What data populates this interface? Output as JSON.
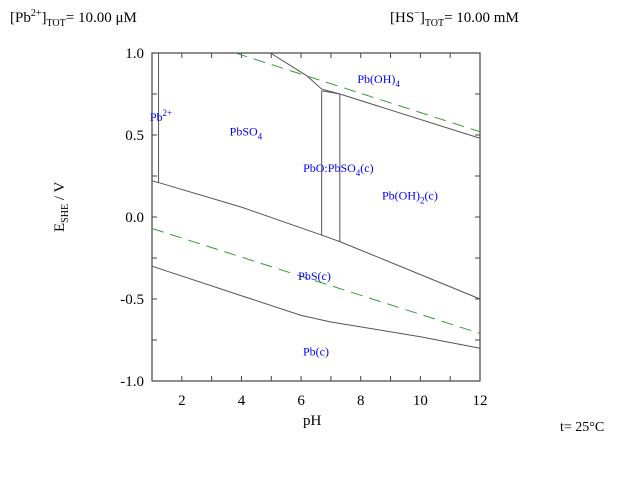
{
  "header": {
    "pb_label": "[Pb",
    "pb_charge": "2+",
    "pb_sub": "TOT",
    "pb_value": "=   10.00 μM",
    "hs_label": "[HS",
    "hs_charge": "−",
    "hs_sub": "TOT",
    "hs_value": "=   10.00 mM"
  },
  "temperature": "t= 25°C",
  "chart_data": {
    "type": "line",
    "title": "",
    "xlabel": "pH",
    "ylabel_main": "E",
    "ylabel_sub": "SHE",
    "ylabel_rest": " / V",
    "xlim": [
      1,
      12
    ],
    "ylim": [
      -1.0,
      1.0
    ],
    "xticks": [
      2,
      4,
      6,
      8,
      10,
      12
    ],
    "xtick_labels": [
      "2",
      "4",
      "6",
      "8",
      "10",
      "12"
    ],
    "yticks": [
      1.0,
      0.5,
      0.0,
      -0.5,
      -1.0
    ],
    "ytick_labels": [
      "1.0",
      "0.5",
      "0.0",
      "-0.5",
      "-1.0"
    ],
    "grid": false,
    "boundary_color": "#555555",
    "water_line_color": "#3a9a3a",
    "label_color": "#0000ff",
    "boundaries": [
      {
        "points": [
          [
            1.22,
            1.0
          ],
          [
            1.22,
            0.21
          ]
        ]
      },
      {
        "points": [
          [
            1,
            0.22
          ],
          [
            1.22,
            0.21
          ],
          [
            4,
            0.06
          ],
          [
            6.69,
            -0.11
          ],
          [
            7.3,
            -0.15
          ],
          [
            12,
            -0.5
          ]
        ]
      },
      {
        "points": [
          [
            6.69,
            -0.11
          ],
          [
            6.69,
            0.77
          ]
        ]
      },
      {
        "points": [
          [
            7.3,
            -0.15
          ],
          [
            7.3,
            0.75
          ]
        ]
      },
      {
        "points": [
          [
            4.97,
            1.0
          ],
          [
            6.2,
            0.86
          ],
          [
            6.69,
            0.78
          ],
          [
            7.3,
            0.75
          ],
          [
            12,
            0.48
          ]
        ]
      },
      {
        "points": [
          [
            6.69,
            0.77
          ],
          [
            7.3,
            0.75
          ]
        ]
      },
      {
        "points": [
          [
            1,
            -0.3
          ],
          [
            4,
            -0.48
          ],
          [
            6,
            -0.6
          ],
          [
            7,
            -0.64
          ],
          [
            8,
            -0.67
          ],
          [
            10,
            -0.73
          ],
          [
            12,
            -0.8
          ]
        ]
      }
    ],
    "water_lines": [
      {
        "points": [
          [
            3.8,
            1.0
          ],
          [
            12,
            0.52
          ]
        ]
      },
      {
        "points": [
          [
            1,
            -0.07
          ],
          [
            12,
            -0.71
          ]
        ]
      }
    ],
    "regions": [
      {
        "label": "Pb",
        "sup": "2+",
        "sub": "",
        "tail": "",
        "ph": 1.3,
        "e": 0.61
      },
      {
        "label": "PbSO",
        "sup": "",
        "sub": "4",
        "tail": "",
        "ph": 4.15,
        "e": 0.52
      },
      {
        "label": "Pb(OH)",
        "sup": "",
        "sub": "4",
        "tail": "",
        "ph": 8.6,
        "e": 0.84
      },
      {
        "label": "PbO:PbSO",
        "sup": "",
        "sub": "4",
        "tail": "(c)",
        "ph": 7.25,
        "e": 0.3
      },
      {
        "label": "Pb(OH)",
        "sup": "",
        "sub": "2",
        "tail": "(c)",
        "ph": 9.65,
        "e": 0.13
      },
      {
        "label": "PbS(c)",
        "sup": "",
        "sub": "",
        "tail": "",
        "ph": 6.45,
        "e": -0.36
      },
      {
        "label": "Pb(c)",
        "sup": "",
        "sub": "",
        "tail": "",
        "ph": 6.5,
        "e": -0.82
      }
    ]
  }
}
